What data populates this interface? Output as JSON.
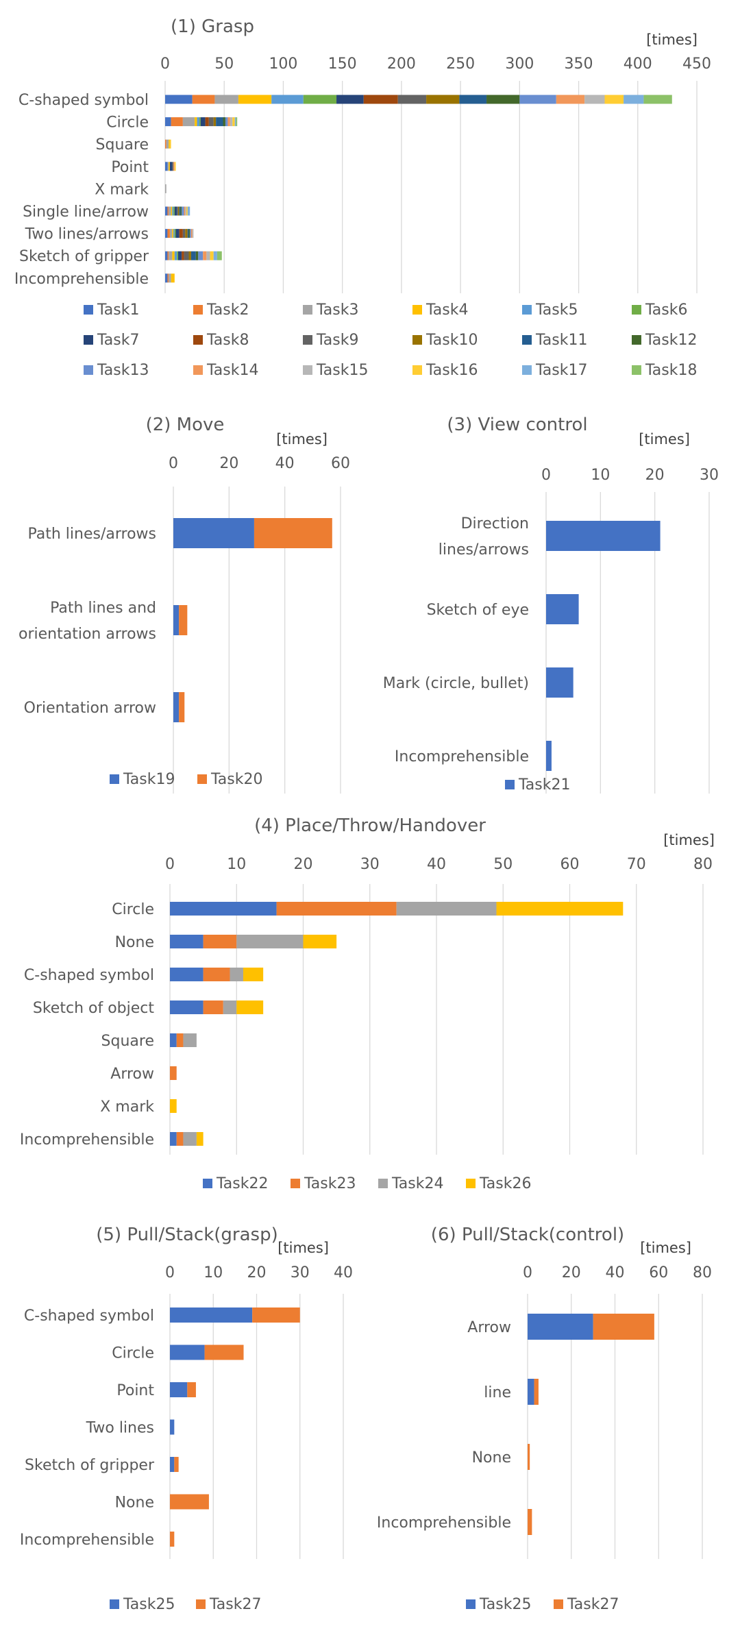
{
  "chart_data": [
    {
      "id": "grasp",
      "type": "bar",
      "stacked": true,
      "orientation": "horizontal",
      "title": "(1) Grasp",
      "unit": "[times]",
      "xlim": [
        0,
        450
      ],
      "ticks": [
        0,
        50,
        100,
        150,
        200,
        250,
        300,
        350,
        400,
        450
      ],
      "categories": [
        "C-shaped symbol",
        "Circle",
        "Square",
        "Point",
        "X mark",
        "Single line/arrow",
        "Two lines/arrows",
        "Sketch of gripper",
        "Incomprehensible"
      ],
      "series": [
        {
          "name": "Task1",
          "color": "#4472C4",
          "values": [
            23,
            5,
            0,
            2,
            0,
            2,
            2,
            2,
            2
          ]
        },
        {
          "name": "Task2",
          "color": "#ED7D31",
          "values": [
            19,
            10,
            1,
            0,
            0,
            1,
            2,
            1,
            1
          ]
        },
        {
          "name": "Task3",
          "color": "#A5A5A5",
          "values": [
            20,
            10,
            2,
            1,
            1,
            2,
            2,
            3,
            2
          ]
        },
        {
          "name": "Task4",
          "color": "#FFC000",
          "values": [
            28,
            2,
            1,
            1,
            0,
            1,
            1,
            2,
            3
          ]
        },
        {
          "name": "Task5",
          "color": "#5B9BD5",
          "values": [
            27,
            2,
            0,
            0,
            0,
            1,
            1,
            2,
            0
          ]
        },
        {
          "name": "Task6",
          "color": "#70AD47",
          "values": [
            28,
            1,
            0,
            0,
            0,
            1,
            1,
            1,
            0
          ]
        },
        {
          "name": "Task7",
          "color": "#264478",
          "values": [
            23,
            4,
            0,
            2,
            0,
            2,
            3,
            3,
            0
          ]
        },
        {
          "name": "Task8",
          "color": "#9E480E",
          "values": [
            29,
            3,
            0,
            0,
            0,
            0,
            3,
            2,
            0
          ]
        },
        {
          "name": "Task9",
          "color": "#636363",
          "values": [
            24,
            4,
            0,
            1,
            0,
            1,
            2,
            4,
            0
          ]
        },
        {
          "name": "Task10",
          "color": "#997300",
          "values": [
            28,
            2,
            0,
            0,
            0,
            1,
            2,
            2,
            0
          ]
        },
        {
          "name": "Task11",
          "color": "#255E91",
          "values": [
            23,
            6,
            0,
            0,
            0,
            1,
            1,
            4,
            0
          ]
        },
        {
          "name": "Task12",
          "color": "#43682B",
          "values": [
            28,
            2,
            0,
            0,
            0,
            1,
            1,
            2,
            0
          ]
        },
        {
          "name": "Task13",
          "color": "#698ED0",
          "values": [
            31,
            2,
            0,
            0,
            0,
            2,
            1,
            4,
            0
          ]
        },
        {
          "name": "Task14",
          "color": "#F1975A",
          "values": [
            24,
            2,
            0,
            1,
            0,
            1,
            1,
            3,
            0
          ]
        },
        {
          "name": "Task15",
          "color": "#B7B7B7",
          "values": [
            17,
            2,
            0,
            0,
            0,
            1,
            1,
            3,
            0
          ]
        },
        {
          "name": "Task16",
          "color": "#FFCD33",
          "values": [
            16,
            2,
            1,
            1,
            0,
            1,
            0,
            3,
            0
          ]
        },
        {
          "name": "Task17",
          "color": "#7CAFDD",
          "values": [
            17,
            1,
            0,
            0,
            0,
            2,
            0,
            3,
            0
          ]
        },
        {
          "name": "Task18",
          "color": "#8CC168",
          "values": [
            24,
            1,
            0,
            0,
            0,
            0,
            0,
            4,
            0
          ]
        }
      ]
    },
    {
      "id": "move",
      "type": "bar",
      "stacked": true,
      "orientation": "horizontal",
      "title": "(2) Move",
      "unit": "[times]",
      "xlim": [
        0,
        60
      ],
      "ticks": [
        0,
        20,
        40,
        60
      ],
      "categories": [
        "Path lines/arrows",
        "Path lines and orientation arrows",
        "Orientation arrow"
      ],
      "category_lines": [
        [
          "Path lines/arrows"
        ],
        [
          "Path lines and",
          "orientation arrows"
        ],
        [
          "Orientation arrow"
        ]
      ],
      "series": [
        {
          "name": "Task19",
          "color": "#4472C4",
          "values": [
            29,
            2,
            2
          ]
        },
        {
          "name": "Task20",
          "color": "#ED7D31",
          "values": [
            28,
            3,
            2
          ]
        }
      ]
    },
    {
      "id": "view",
      "type": "bar",
      "stacked": true,
      "orientation": "horizontal",
      "title": "(3) View control",
      "unit": "[times]",
      "xlim": [
        0,
        30
      ],
      "ticks": [
        0,
        10,
        20,
        30
      ],
      "categories": [
        "Direction lines/arrows",
        "Sketch of eye",
        "Mark (circle, bullet)",
        "Incomprehensible"
      ],
      "category_lines": [
        [
          "Direction",
          "lines/arrows"
        ],
        [
          "Sketch of eye"
        ],
        [
          "Mark (circle, bullet)"
        ],
        [
          "Incomprehensible"
        ]
      ],
      "series": [
        {
          "name": "Task21",
          "color": "#4472C4",
          "values": [
            21,
            6,
            5,
            1
          ]
        }
      ]
    },
    {
      "id": "place",
      "type": "bar",
      "stacked": true,
      "orientation": "horizontal",
      "title": "(4) Place/Throw/Handover",
      "unit": "[times]",
      "xlim": [
        0,
        80
      ],
      "ticks": [
        0,
        10,
        20,
        30,
        40,
        50,
        60,
        70,
        80
      ],
      "categories": [
        "Circle",
        "None",
        "C-shaped symbol",
        "Sketch of object",
        "Square",
        "Arrow",
        "X mark",
        "Incomprehensible"
      ],
      "series": [
        {
          "name": "Task22",
          "color": "#4472C4",
          "values": [
            16,
            5,
            5,
            5,
            1,
            0,
            0,
            1
          ]
        },
        {
          "name": "Task23",
          "color": "#ED7D31",
          "values": [
            18,
            5,
            4,
            3,
            1,
            1,
            0,
            1
          ]
        },
        {
          "name": "Task24",
          "color": "#A5A5A5",
          "values": [
            15,
            10,
            2,
            2,
            2,
            0,
            0,
            2
          ]
        },
        {
          "name": "Task26",
          "color": "#FFC000",
          "values": [
            19,
            5,
            3,
            4,
            0,
            0,
            1,
            1
          ]
        }
      ]
    },
    {
      "id": "pull_grasp",
      "type": "bar",
      "stacked": true,
      "orientation": "horizontal",
      "title": "(5) Pull/Stack(grasp)",
      "unit": "[times]",
      "xlim": [
        0,
        40
      ],
      "ticks": [
        0,
        10,
        20,
        30,
        40
      ],
      "categories": [
        "C-shaped symbol",
        "Circle",
        "Point",
        "Two lines",
        "Sketch of gripper",
        "None",
        "Incomprehensible"
      ],
      "series": [
        {
          "name": "Task25",
          "color": "#4472C4",
          "values": [
            19,
            8,
            4,
            1,
            1,
            0,
            0
          ]
        },
        {
          "name": "Task27",
          "color": "#ED7D31",
          "values": [
            11,
            9,
            2,
            0,
            1,
            9,
            1
          ]
        }
      ]
    },
    {
      "id": "pull_control",
      "type": "bar",
      "stacked": true,
      "orientation": "horizontal",
      "title": "(6) Pull/Stack(control)",
      "unit": "[times]",
      "xlim": [
        0,
        80
      ],
      "ticks": [
        0,
        20,
        40,
        60,
        80
      ],
      "categories": [
        "Arrow",
        "line",
        "None",
        "Incomprehensible"
      ],
      "series": [
        {
          "name": "Task25",
          "color": "#4472C4",
          "values": [
            30,
            3,
            0,
            0
          ]
        },
        {
          "name": "Task27",
          "color": "#ED7D31",
          "values": [
            28,
            2,
            1,
            2
          ]
        }
      ]
    }
  ]
}
